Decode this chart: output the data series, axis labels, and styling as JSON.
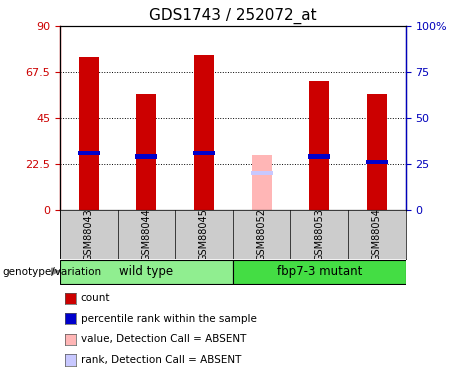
{
  "title": "GDS1743 / 252072_at",
  "samples": [
    "GSM88043",
    "GSM88044",
    "GSM88045",
    "GSM88052",
    "GSM88053",
    "GSM88054"
  ],
  "count_values": [
    75,
    57,
    76,
    null,
    63,
    57
  ],
  "rank_values": [
    31,
    29,
    31,
    null,
    29,
    26
  ],
  "absent_value": [
    null,
    null,
    null,
    27,
    null,
    null
  ],
  "absent_rank": [
    null,
    null,
    null,
    20,
    null,
    null
  ],
  "left_ylim": [
    0,
    90
  ],
  "right_ylim": [
    0,
    100
  ],
  "left_yticks": [
    0,
    22.5,
    45,
    67.5,
    90
  ],
  "right_yticks": [
    0,
    25,
    50,
    75,
    100
  ],
  "left_yticklabels": [
    "0",
    "22.5",
    "45",
    "67.5",
    "90"
  ],
  "right_yticklabels": [
    "0",
    "25",
    "50",
    "75",
    "100%"
  ],
  "colors": {
    "count": "#CC0000",
    "rank": "#0000CC",
    "absent_value": "#FFB6B6",
    "absent_rank": "#C8C8FF",
    "left_axis": "#CC0000",
    "right_axis": "#0000BB",
    "bar_bg": "#CCCCCC",
    "group_wt": "#90EE90",
    "group_mut": "#44DD44"
  },
  "bar_width": 0.35,
  "groups": [
    {
      "name": "wild type",
      "start": 0,
      "end": 2,
      "color": "#90EE90"
    },
    {
      "name": "fbp7-3 mutant",
      "start": 3,
      "end": 5,
      "color": "#44DD44"
    }
  ],
  "legend_items": [
    {
      "label": "count",
      "color": "#CC0000"
    },
    {
      "label": "percentile rank within the sample",
      "color": "#0000CC"
    },
    {
      "label": "value, Detection Call = ABSENT",
      "color": "#FFB6B6"
    },
    {
      "label": "rank, Detection Call = ABSENT",
      "color": "#C8C8FF"
    }
  ]
}
